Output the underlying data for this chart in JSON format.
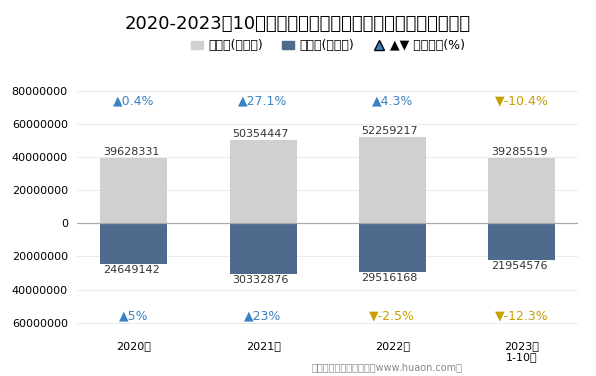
{
  "title": "2020-2023年10月江苏省商品收发货人所在地进、出口额统计",
  "categories": [
    "2020年",
    "2021年",
    "2022年",
    "2023年\n1-10月"
  ],
  "export_values": [
    39628331,
    50354447,
    52259217,
    39285519
  ],
  "import_values": [
    24649142,
    30332876,
    29516168,
    21954576
  ],
  "export_growth_texts": [
    "▲0.4%",
    "▲27.1%",
    "▲4.3%",
    "▼-10.4%"
  ],
  "import_growth_texts": [
    "▲5%",
    "▲23%",
    "▼-2.5%",
    "▼-12.3%"
  ],
  "export_growth_colors": [
    "#3b82c4",
    "#3b82c4",
    "#3b82c4",
    "#c8a000"
  ],
  "import_growth_colors": [
    "#3b82c4",
    "#3b82c4",
    "#c8a000",
    "#c8a000"
  ],
  "bar_color_export": "#d0d0d0",
  "bar_color_import": "#4e6a8c",
  "bar_width": 0.52,
  "ylim_min": -65000000,
  "ylim_max": 85000000,
  "ytick_vals": [
    -60000000,
    -40000000,
    -20000000,
    0,
    20000000,
    40000000,
    60000000,
    80000000
  ],
  "legend_export": "出口额(万美元)",
  "legend_import": "进口额(万美元)",
  "legend_growth": "同比增长(%)",
  "footnote": "制图：华经产业研究院（www.huaon.com）",
  "title_fontsize": 13,
  "tick_fontsize": 8,
  "annot_fontsize": 8,
  "growth_fontsize": 9,
  "legend_fontsize": 9
}
